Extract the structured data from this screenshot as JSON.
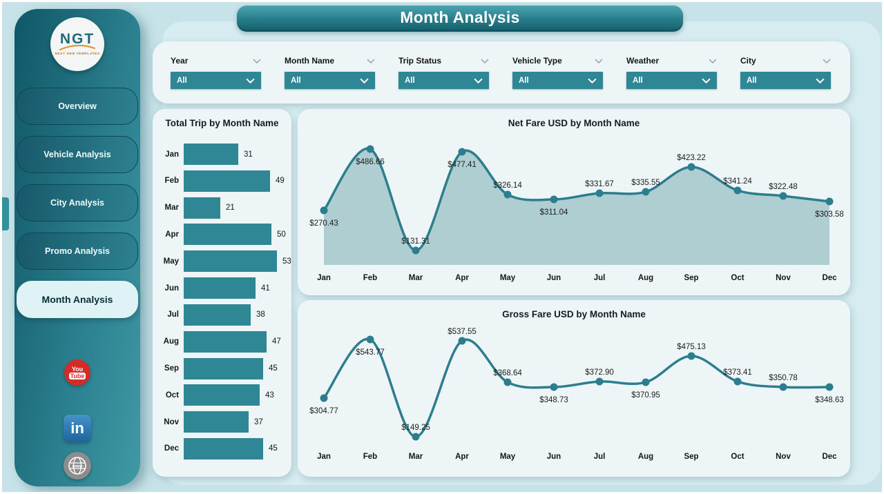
{
  "page_title": "Month Analysis",
  "sidebar": {
    "logo": {
      "text": "NGT",
      "subtext": "NEXT GEN TEMPLATES"
    },
    "items": [
      {
        "label": "Overview",
        "active": false
      },
      {
        "label": "Vehicle Analysis",
        "active": false
      },
      {
        "label": "City Analysis",
        "active": false
      },
      {
        "label": "Promo Analysis",
        "active": false
      },
      {
        "label": "Month Analysis",
        "active": true
      }
    ],
    "social": [
      {
        "name": "youtube",
        "lines": [
          "You",
          "Tube"
        ]
      },
      {
        "name": "linkedin",
        "text": "in"
      },
      {
        "name": "website",
        "text": "www"
      }
    ]
  },
  "filters": [
    {
      "label": "Year",
      "value": "All"
    },
    {
      "label": "Month Name",
      "value": "All"
    },
    {
      "label": "Trip Status",
      "value": "All"
    },
    {
      "label": "Vehicle Type",
      "value": "All"
    },
    {
      "label": "Weather",
      "value": "All"
    },
    {
      "label": "City",
      "value": "All"
    }
  ],
  "colors": {
    "primary_teal": "#2f8695",
    "line": "#2c7d8d",
    "area_fill": "#a5c8cd",
    "panel_bg": "#eef5f6",
    "canvas_bg": "#c7e3e9",
    "sidebar_dark": "#0f5766",
    "sidebar_light": "#3f99a4",
    "active_nav_bg": "#dff2f5",
    "youtube_red": "#d32b27",
    "linkedin_blue": "#2d76ae"
  },
  "chart_data": [
    {
      "type": "bar",
      "orientation": "horizontal",
      "title": "Total Trip by Month Name",
      "categories": [
        "Jan",
        "Feb",
        "Mar",
        "Apr",
        "May",
        "Jun",
        "Jul",
        "Aug",
        "Sep",
        "Oct",
        "Nov",
        "Dec"
      ],
      "values": [
        31,
        49,
        21,
        50,
        53,
        41,
        38,
        47,
        45,
        43,
        37,
        45
      ],
      "xlim": [
        0,
        53
      ],
      "bar_color": "#2f8695"
    },
    {
      "type": "area",
      "title": "Net Fare USD by Month Name",
      "categories": [
        "Jan",
        "Feb",
        "Mar",
        "Apr",
        "May",
        "Jun",
        "Jul",
        "Aug",
        "Sep",
        "Oct",
        "Nov",
        "Dec"
      ],
      "values": [
        270.43,
        486.66,
        131.31,
        477.41,
        326.14,
        311.04,
        331.67,
        335.55,
        423.22,
        341.24,
        322.48,
        303.58
      ],
      "label_prefix": "$",
      "label_pos": [
        "below",
        "below",
        "above",
        "below",
        "above",
        "below",
        "above",
        "above",
        "above",
        "above",
        "above",
        "below"
      ],
      "ylim": [
        100,
        520
      ],
      "line_color": "#2c7d8d",
      "area_fill": "#a5c8cd",
      "grid": false,
      "legend": "none"
    },
    {
      "type": "line",
      "title": "Gross Fare USD by Month Name",
      "categories": [
        "Jan",
        "Feb",
        "Mar",
        "Apr",
        "May",
        "Jun",
        "Jul",
        "Aug",
        "Sep",
        "Oct",
        "Nov",
        "Dec"
      ],
      "values": [
        304.77,
        543.77,
        149.25,
        537.55,
        368.64,
        348.73,
        372.9,
        370.95,
        475.13,
        373.41,
        350.78,
        348.63
      ],
      "label_prefix": "$",
      "label_pos": [
        "below",
        "below",
        "above",
        "above",
        "above",
        "below",
        "above",
        "below",
        "above",
        "above",
        "above",
        "below"
      ],
      "ylim": [
        120,
        580
      ],
      "line_color": "#2c7d8d",
      "grid": false,
      "legend": "none"
    }
  ]
}
